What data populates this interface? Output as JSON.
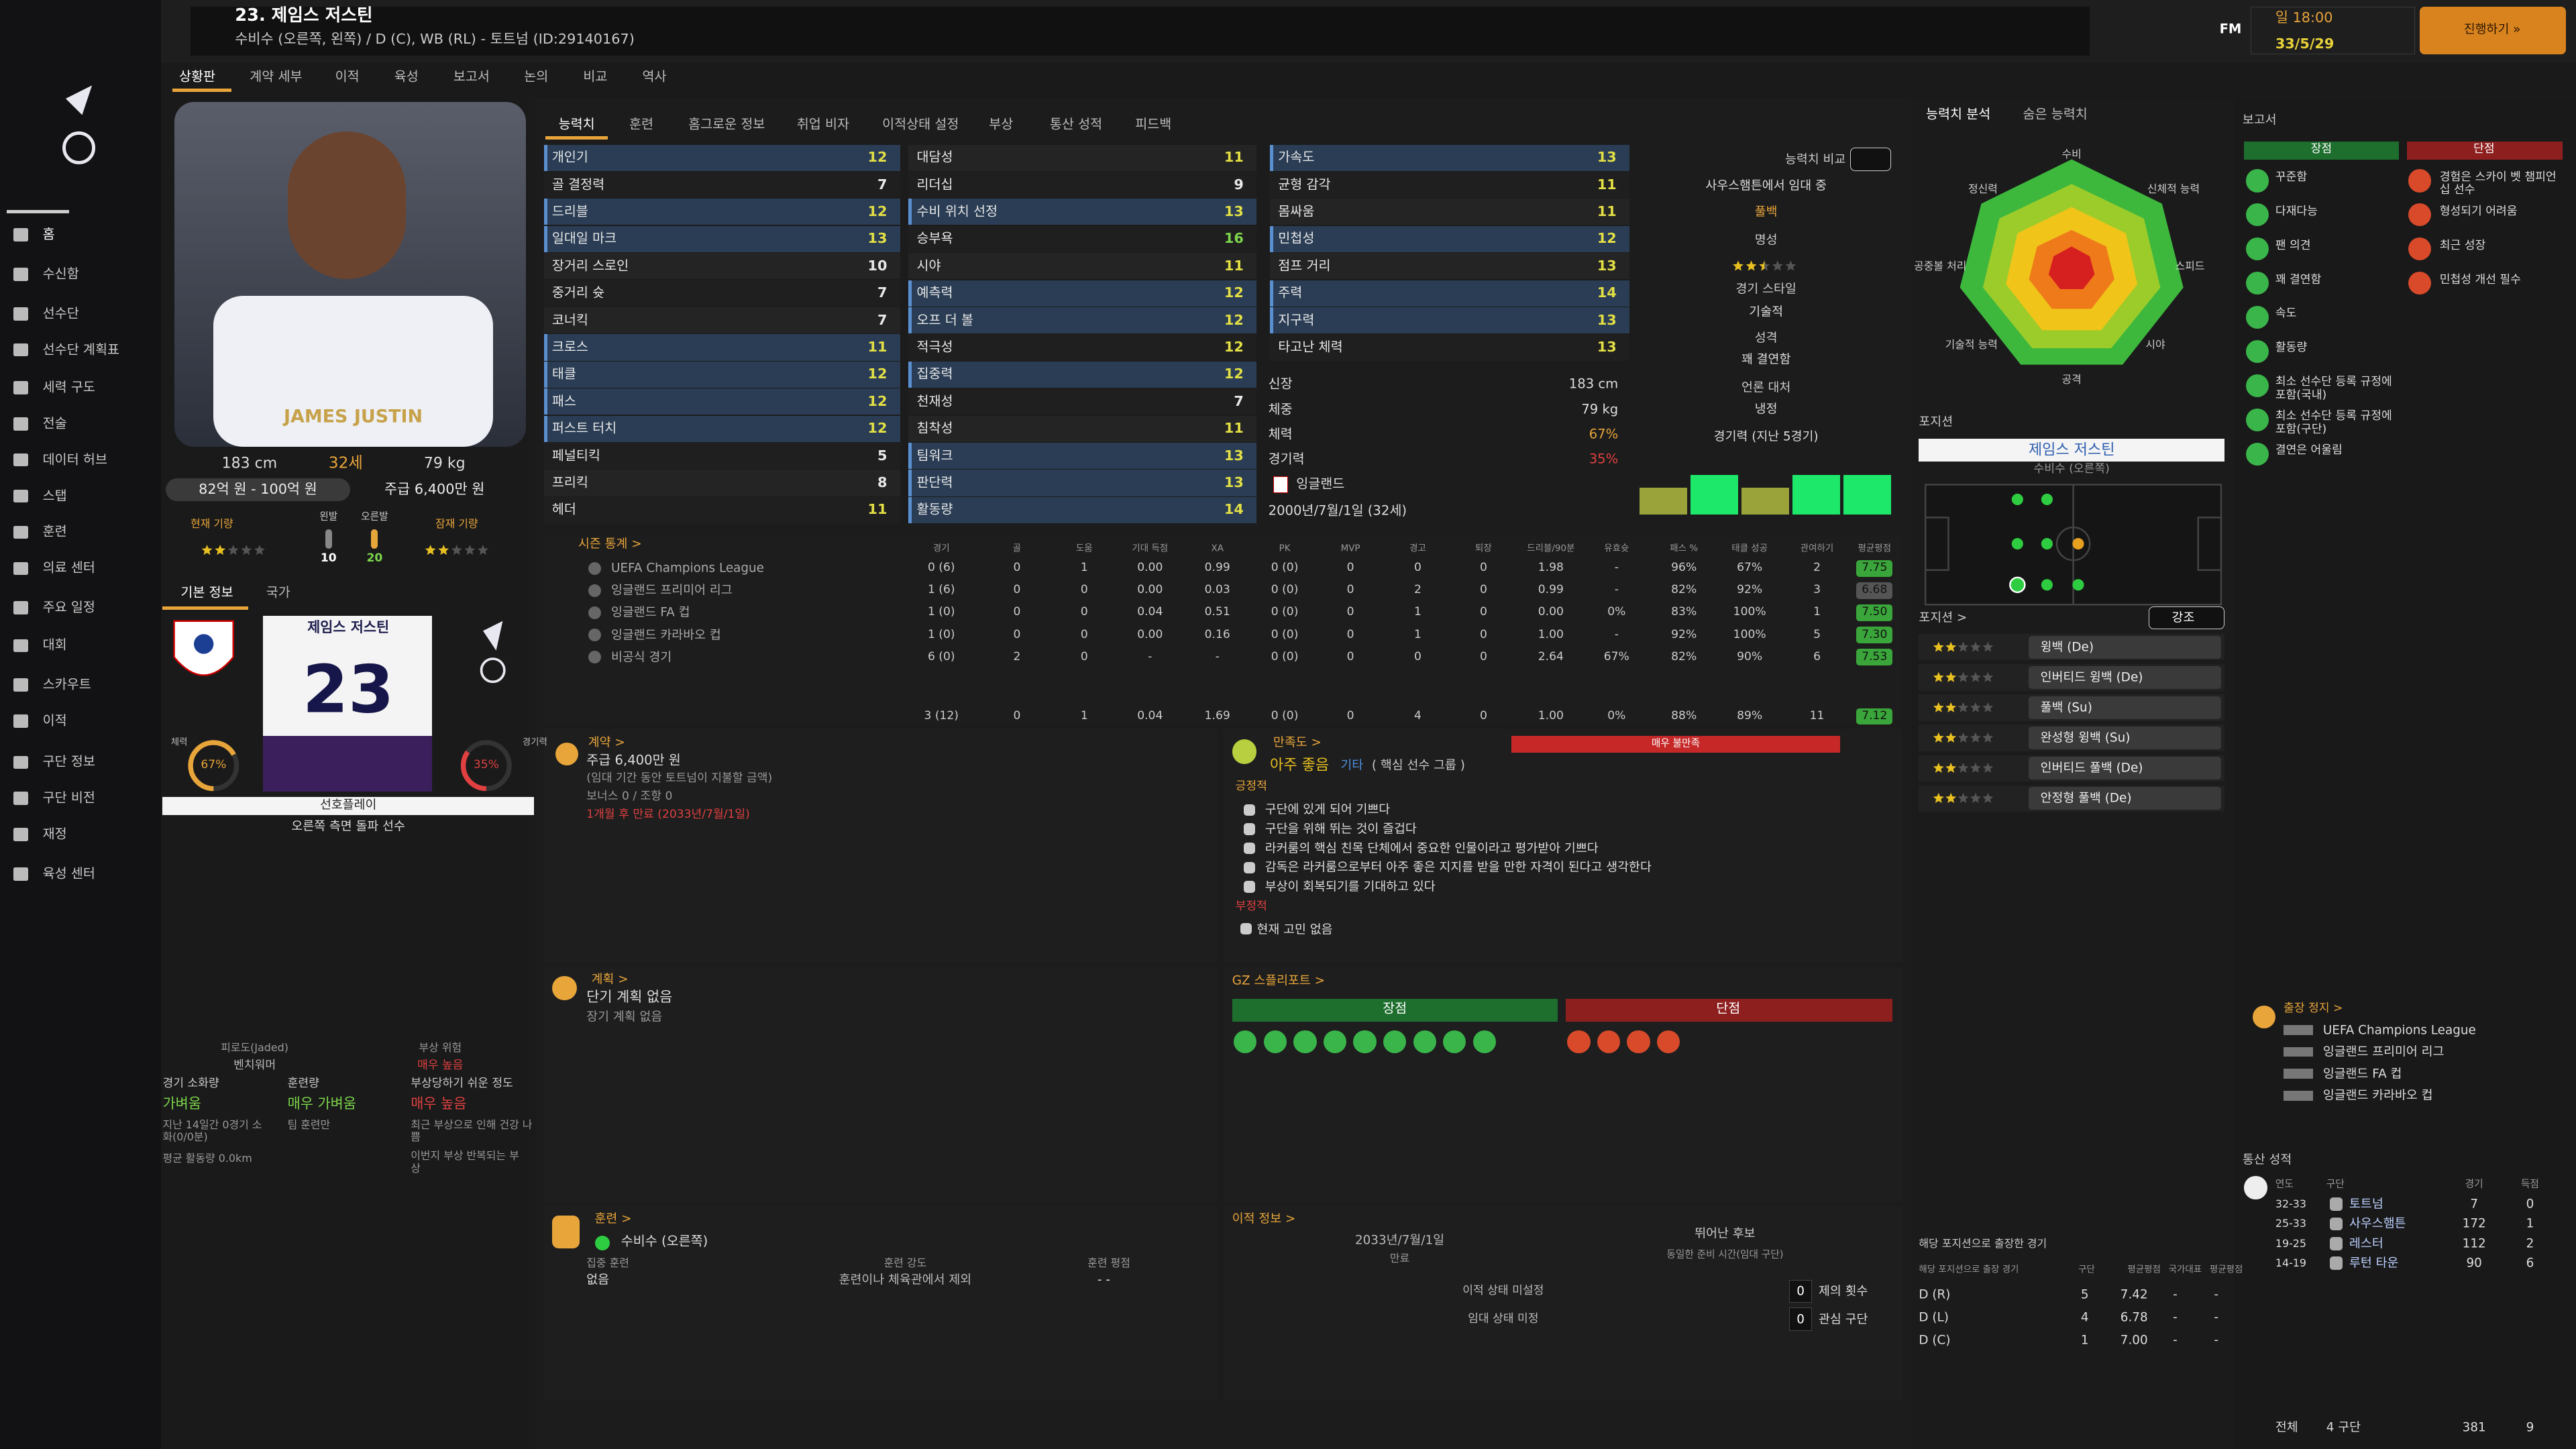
{
  "header": {
    "title": "23. 제임스 저스틴",
    "subtitle": "수비수 (오른쪽, 왼쪽) / D (C), WB (RL) - 토트넘 (ID:29140167)",
    "brand": "FM",
    "time": "일 18:00",
    "date": "33/5/29",
    "continue": "진행하기 »"
  },
  "sub_tabs": [
    "상황판",
    "계약 세부",
    "이적",
    "육성",
    "보고서",
    "논의",
    "비교",
    "역사"
  ],
  "nav": [
    "홈",
    "수신함",
    "선수단",
    "선수단 계획표",
    "세력 구도",
    "전술",
    "데이터 허브",
    "스탭",
    "훈련",
    "의료 센터",
    "주요 일정",
    "대회",
    "스카우트",
    "이적",
    "구단 정보",
    "구단 비전",
    "재정",
    "육성 센터"
  ],
  "profile": {
    "shirt_text": "JAMES JUSTIN",
    "height": "183 cm",
    "age": "32세",
    "weight": "79 kg",
    "value": "82억 원 - 100억 원",
    "wage": "주급 6,400만 원",
    "current_ability": "현재 기량",
    "current_ability_stars": 2,
    "left_foot": "왼발",
    "right_foot": "오른발",
    "left_foot_value": 10,
    "right_foot_value": 20,
    "potential_ability": "잠재 기량",
    "potential_ability_stars": 2,
    "tabs": [
      "기본 정보",
      "국가"
    ],
    "card_name": "제임스 저스틴",
    "number": 23,
    "condition_label": "체력",
    "condition": {
      "value": 67,
      "label": "67%"
    },
    "sharpness_label": "경기력",
    "sharpness": {
      "value": 35,
      "label": "35%"
    },
    "preferred_label": "선호플레이",
    "preferred": "오른쪽 측면 돌파 선수"
  },
  "workload": {
    "fatigue_label": "피로도(Jaded)",
    "fatigue": "벤치워머",
    "injury_label": "부상 위험",
    "injury": "매우 높음",
    "match_load_label": "경기 소화량",
    "match_load": "가벼움",
    "training_load_label": "훈련량",
    "training_load": "매우 가벼움",
    "proneness_label": "부상당하기 쉬운 정도",
    "proneness": "매우 높음",
    "match_note": "지난 14일간 0경기 소화(0/0분)",
    "distance_note": "평균 활동량 0.0km",
    "training_note": "팀 훈련만",
    "health_note": "최근 부상으로 인해 건강 나쁨",
    "history_note": "이번지 부상 반복되는 부상"
  },
  "attributes": {
    "tabs": [
      "능력치",
      "훈련",
      "홈그로운 정보",
      "취업 비자",
      "이적상태 설정",
      "부상",
      "통산 성적",
      "피드백"
    ],
    "technical": [
      {
        "name": "개인기",
        "value": 12,
        "key": true
      },
      {
        "name": "골 결정력",
        "value": 7,
        "key": false
      },
      {
        "name": "드리블",
        "value": 12,
        "key": true
      },
      {
        "name": "일대일 마크",
        "value": 13,
        "key": true
      },
      {
        "name": "장거리 스로인",
        "value": 10,
        "key": false
      },
      {
        "name": "중거리 슛",
        "value": 7,
        "key": false
      },
      {
        "name": "코너킥",
        "value": 7,
        "key": false
      },
      {
        "name": "크로스",
        "value": 11,
        "key": true
      },
      {
        "name": "태클",
        "value": 12,
        "key": true
      },
      {
        "name": "패스",
        "value": 12,
        "key": true
      },
      {
        "name": "퍼스트 터치",
        "value": 12,
        "key": true
      },
      {
        "name": "페널티킥",
        "value": 5,
        "key": false
      },
      {
        "name": "프리킥",
        "value": 8,
        "key": false
      },
      {
        "name": "헤더",
        "value": 11,
        "key": false
      }
    ],
    "mental": [
      {
        "name": "대담성",
        "value": 11,
        "key": false
      },
      {
        "name": "리더십",
        "value": 9,
        "key": false
      },
      {
        "name": "수비 위치 선정",
        "value": 13,
        "key": true
      },
      {
        "name": "승부욕",
        "value": 16,
        "key": false
      },
      {
        "name": "시야",
        "value": 11,
        "key": false
      },
      {
        "name": "예측력",
        "value": 12,
        "key": true
      },
      {
        "name": "오프 더 볼",
        "value": 12,
        "key": true
      },
      {
        "name": "적극성",
        "value": 12,
        "key": false
      },
      {
        "name": "집중력",
        "value": 12,
        "key": true
      },
      {
        "name": "천재성",
        "value": 7,
        "key": false
      },
      {
        "name": "침착성",
        "value": 11,
        "key": false
      },
      {
        "name": "팀워크",
        "value": 13,
        "key": true
      },
      {
        "name": "판단력",
        "value": 13,
        "key": true
      },
      {
        "name": "활동량",
        "value": 14,
        "key": true
      }
    ],
    "physical": [
      {
        "name": "가속도",
        "value": 13,
        "key": true
      },
      {
        "name": "균형 감각",
        "value": 11,
        "key": false
      },
      {
        "name": "몸싸움",
        "value": 11,
        "key": false
      },
      {
        "name": "민첩성",
        "value": 12,
        "key": true
      },
      {
        "name": "점프 거리",
        "value": 13,
        "key": false
      },
      {
        "name": "주력",
        "value": 14,
        "key": true
      },
      {
        "name": "지구력",
        "value": 13,
        "key": true
      },
      {
        "name": "타고난 체력",
        "value": 13,
        "key": false
      }
    ],
    "info": [
      {
        "label": "신장",
        "value": "183 cm"
      },
      {
        "label": "체중",
        "value": "79 kg"
      },
      {
        "label": "체력",
        "value": "67%"
      },
      {
        "label": "경기력",
        "value": "35%"
      }
    ],
    "nationality": "잉글랜드",
    "birth": "2000년/7월/1일 (32세)"
  },
  "comparison": {
    "button": "능력치 비교",
    "loan": "사우스햄튼에서 임대 중",
    "role": "풀백",
    "reputation_label": "명성",
    "reputation_stars": 2.5,
    "style_label": "경기 스타일",
    "style": "기술적",
    "personality_label": "성격",
    "personality": "꽤 결연함",
    "media_label": "언론 대처",
    "media": "냉정"
  },
  "form": {
    "title": "경기력 (지난 5경기)",
    "values": [
      6.6,
      7.4,
      6.6,
      7.4,
      7.4
    ]
  },
  "radar": {
    "tabs": [
      "능력치 분석",
      "숨은 능력치"
    ],
    "labels": [
      "수비",
      "신체적 능력",
      "스피드",
      "시야",
      "공격",
      "기술적 능력",
      "공중볼 처리",
      "정신력"
    ]
  },
  "season_stats": {
    "title": "시즌 통계 >",
    "columns": [
      "경기",
      "골",
      "도움",
      "기대 득점",
      "XA",
      "PK",
      "MVP",
      "경고",
      "퇴장",
      "드리블/90분",
      "유효슛",
      "패스 %",
      "태클 성공",
      "관여하기",
      "평균평점"
    ],
    "rows": [
      {
        "competition": "UEFA Champions League",
        "values": [
          "0 (6)",
          "0",
          "1",
          "0.00",
          "0.99",
          "0 (0)",
          "0",
          "0",
          "0",
          "1.98",
          "-",
          "96%",
          "67%",
          "2",
          "7.75"
        ]
      },
      {
        "competition": "잉글랜드 프리미어 리그",
        "values": [
          "1 (6)",
          "0",
          "0",
          "0.00",
          "0.03",
          "0 (0)",
          "0",
          "2",
          "0",
          "0.99",
          "-",
          "82%",
          "92%",
          "3",
          "6.68"
        ]
      },
      {
        "competition": "잉글랜드 FA 컵",
        "values": [
          "1 (0)",
          "0",
          "0",
          "0.04",
          "0.51",
          "0 (0)",
          "0",
          "1",
          "0",
          "0.00",
          "0%",
          "83%",
          "100%",
          "1",
          "7.50"
        ]
      },
      {
        "competition": "잉글랜드 카라바오 컵",
        "values": [
          "1 (0)",
          "0",
          "0",
          "0.00",
          "0.16",
          "0 (0)",
          "0",
          "1",
          "0",
          "1.00",
          "-",
          "92%",
          "100%",
          "5",
          "7.30"
        ]
      },
      {
        "competition": "비공식 경기",
        "values": [
          "6 (0)",
          "2",
          "0",
          "-",
          "-",
          "0 (0)",
          "0",
          "0",
          "0",
          "2.64",
          "67%",
          "82%",
          "90%",
          "6",
          "7.53"
        ]
      }
    ],
    "total": [
      "3 (12)",
      "0",
      "1",
      "0.04",
      "1.69",
      "0 (0)",
      "0",
      "4",
      "0",
      "1.00",
      "0%",
      "88%",
      "89%",
      "11",
      "7.12"
    ]
  },
  "contract": {
    "title": "계약 >",
    "wage": "주급 6,400만 원",
    "wage_note": "(임대 기간 동안 토트넘이 지불할 금액)",
    "bonus": "보너스 0 / 조항 0",
    "expiry": "1개월 후 만료 (2033년/7월/1일)"
  },
  "happiness": {
    "title": "만족도 >",
    "bar": "매우 불만족",
    "level": "아주 좋음",
    "group_label": "기타",
    "group": "( 핵심 선수 그룹 )",
    "positive_label": "긍정적",
    "positive": [
      "구단에 있게 되어 기쁘다",
      "구단을 위해 뛰는 것이 즐겁다",
      "라커룸의 핵심 친목 단체에서 중요한 인물이라고 평가받아 기쁘다",
      "감독은 라커룸으로부터 아주 좋은 지지를 받을 만한 자격이 된다고 생각한다",
      "부상이 회복되기를 기대하고 있다"
    ],
    "negative_label": "부정적",
    "negative": [
      "현재 고민 없음"
    ]
  },
  "plans": {
    "title": "계획 >",
    "short": "단기 계획 없음",
    "long": "장기 계획 없음"
  },
  "gz": {
    "title": "GZ 스플리포트 >",
    "strengths": "장점",
    "weaknesses": "단점"
  },
  "training": {
    "title": "훈련 >",
    "role": "수비수 (오른쪽)",
    "focus_label": "집중 훈련",
    "focus": "없음",
    "intensity_label": "훈련 강도",
    "intensity": "훈련이나 체육관에서 제외",
    "rating_label": "훈련 평점",
    "rating": "- -"
  },
  "transfer": {
    "title": "이적 정보 >",
    "expiry_date": "2033년/7월/1일",
    "expiry_label": "만료",
    "candidate": "뛰어난 후보",
    "candidate_note": "동일한 준비 시간(임대 구단)",
    "transfer_status": "이적 상태 미설정",
    "loan_status": "임대 상태 미정",
    "offers": 0,
    "offers_label": "제의 횟수",
    "interest": 0,
    "interest_label": "관심 구단"
  },
  "position": {
    "title": "포지션",
    "name": "제임스 저스틴",
    "role": "수비수 (오른쪽)",
    "roles_title": "포지션 >",
    "highlight": "강조",
    "roles": [
      {
        "name": "윙백 (De)",
        "stars": 2
      },
      {
        "name": "인버티드 윙백 (De)",
        "stars": 2
      },
      {
        "name": "풀백 (Su)",
        "stars": 2
      },
      {
        "name": "완성형 윙백 (Su)",
        "stars": 2
      },
      {
        "name": "인버티드 풀백 (De)",
        "stars": 2
      },
      {
        "name": "안정형 풀백 (De)",
        "stars": 2
      }
    ]
  },
  "position_apps": {
    "title": "해당 포지션으로 출장한 경기",
    "headers": [
      "해당 포지션으로 출장 경기",
      "구단",
      "평균평점",
      "국가대표",
      "평균평점"
    ],
    "rows": [
      [
        "D (R)",
        "5",
        "7.42",
        "-",
        "-"
      ],
      [
        "D (L)",
        "4",
        "6.78",
        "-",
        "-"
      ],
      [
        "D (C)",
        "1",
        "7.00",
        "-",
        "-"
      ]
    ]
  },
  "report": {
    "title": "보고서",
    "strengths_label": "장점",
    "weaknesses_label": "단점",
    "strengths": [
      "꾸준함",
      "다재다능",
      "팬 의견",
      "꽤 결연함",
      "속도",
      "활동량",
      "최소 선수단 등록 규정에 포함(국내)",
      "최소 선수단 등록 규정에 포함(구단)",
      "결연은 어울림"
    ],
    "weaknesses": [
      "경험은 스카이 벳 챔피언십 선수",
      "형성되기 어려움",
      "최근 성장",
      "민첩성 개선 필수"
    ]
  },
  "suspension": {
    "title": "출장 정지 >",
    "competitions": [
      "UEFA Champions League",
      "잉글랜드 프리미어 리그",
      "잉글랜드 FA 컵",
      "잉글랜드 카라바오 컵"
    ]
  },
  "career": {
    "title": "통산 성적",
    "headers": [
      "연도",
      "구단",
      "경기",
      "득점"
    ],
    "rows": [
      {
        "season": "32-33",
        "club": "토트넘",
        "apps": 7,
        "goals": 0
      },
      {
        "season": "25-33",
        "club": "사우스햄튼",
        "apps": 172,
        "goals": 1
      },
      {
        "season": "19-25",
        "club": "레스터",
        "apps": 112,
        "goals": 2
      },
      {
        "season": "14-19",
        "club": "루턴 타운",
        "apps": 90,
        "goals": 6
      }
    ],
    "total": {
      "label": "전체",
      "clubs": "4 구단",
      "apps": 381,
      "goals": 9
    }
  }
}
